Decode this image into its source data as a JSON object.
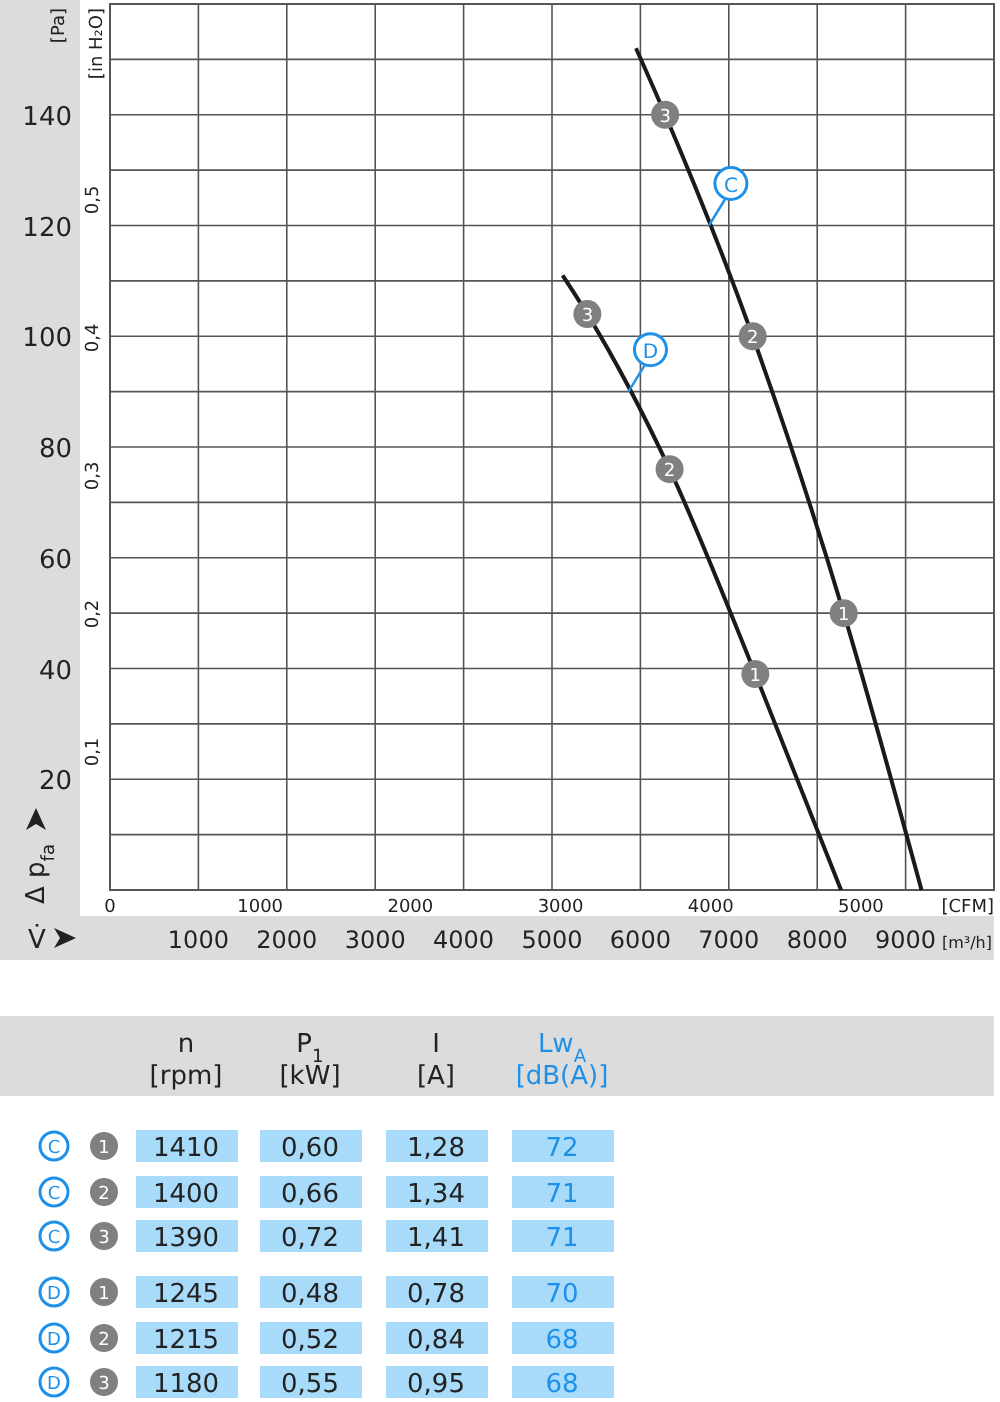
{
  "chart_data": [
    {
      "type": "line",
      "ylabel": "Δ p$_{fa}$",
      "y2label": "[in H₂O]",
      "xlabel": "V̇",
      "x2label": "[CFM]",
      "xlim": [
        0,
        10000
      ],
      "xticks": [
        1000,
        2000,
        3000,
        4000,
        5000,
        6000,
        7000,
        8000,
        9000
      ],
      "x2lim": [
        0,
        5886
      ],
      "x2ticks": [
        0,
        1000,
        2000,
        3000,
        4000,
        5000
      ],
      "ylim": [
        0,
        160
      ],
      "yticks": [
        {
          "value": 10,
          "label": null
        },
        20,
        {
          "value": 30,
          "label": null
        },
        40,
        {
          "value": 50,
          "label": null
        },
        60,
        {
          "value": 70,
          "label": null
        },
        80,
        {
          "value": 90,
          "label": null
        },
        100,
        {
          "value": 110,
          "label": null
        },
        120,
        {
          "value": 130,
          "label": null
        },
        140,
        {
          "value": 150,
          "label": null
        }
      ],
      "y2lim": [
        0,
        0.642
      ],
      "y2ticks": [
        {
          "value": 0.1,
          "label": "0,1"
        },
        {
          "value": 0.2,
          "label": "0,2"
        },
        {
          "value": 0.3,
          "label": "0,3"
        },
        {
          "value": 0.4,
          "label": "0,4"
        },
        {
          "value": 0.5,
          "label": "0,5"
        }
      ],
      "grid": true,
      "series": [
        {
          "name": "C",
          "color": "#1a1a1a",
          "x": [
            5950,
            6280,
            7270,
            8300,
            9180
          ],
          "values": [
            152,
            140,
            100,
            50,
            0
          ]
        },
        {
          "name": "D",
          "color": "#1a1a1a",
          "x": [
            5120,
            5400,
            6330,
            7300,
            8270
          ],
          "values": [
            111,
            104,
            76,
            39,
            0
          ]
        }
      ],
      "annotations": [
        "[Pa]",
        "[m³/h]",
        {
          "text": "3",
          "x": 6280,
          "y": 140
        },
        {
          "text": "2",
          "x": 7270,
          "y": 100
        },
        {
          "text": "1",
          "x": 8300,
          "y": 50
        },
        {
          "text": "3",
          "x": 5400,
          "y": 104
        },
        {
          "text": "2",
          "x": 6330,
          "y": 76
        },
        {
          "text": "1",
          "x": 7300,
          "y": 39
        }
      ]
    },
    {
      "type": "other",
      "categories": [
        "n [rpm]",
        "P$_{1}$ [kW]",
        "I [A]",
        "Lw$_{A}$ [dB(A)]"
      ],
      "y_categories": [
        "C",
        "C",
        "C",
        "D",
        "D",
        "D"
      ],
      "y2_categories": [
        "1",
        "2",
        "3",
        "1",
        "2",
        "3"
      ],
      "cell_labels": [
        [
          "1410",
          "0,60",
          "1,28",
          "72"
        ],
        [
          "1400",
          "0,66",
          "1,34",
          "71"
        ],
        [
          "1390",
          "0,72",
          "1,41",
          "71"
        ],
        [
          "1245",
          "0,48",
          "0,78",
          "70"
        ],
        [
          "1215",
          "0,52",
          "0,84",
          "68"
        ],
        [
          "1180",
          "0,55",
          "0,95",
          "68"
        ]
      ]
    }
  ]
}
